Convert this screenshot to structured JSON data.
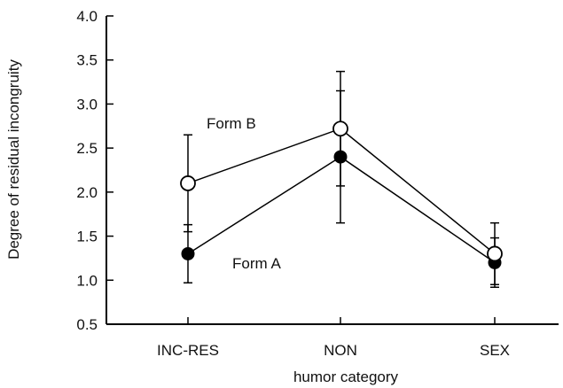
{
  "chart_data": {
    "type": "line",
    "title": "",
    "xlabel": "humor category",
    "ylabel": "Degree of residual incongruity",
    "categories": [
      "INC-RES",
      "NON",
      "SEX"
    ],
    "ylim": [
      0.5,
      4.0
    ],
    "yticks": [
      0.5,
      1.0,
      1.5,
      2.0,
      2.5,
      3.0,
      3.5,
      4.0
    ],
    "ytick_labels": [
      "0.5",
      "1.0",
      "1.5",
      "2.0",
      "2.5",
      "3.0",
      "3.5",
      "4.0"
    ],
    "grid": false,
    "legend": "none (series labeled inline)",
    "series": [
      {
        "name": "Form B",
        "marker": "open-circle",
        "color": "#000000",
        "values": [
          2.1,
          2.72,
          1.3
        ],
        "error": [
          0.55,
          0.65,
          0.35
        ]
      },
      {
        "name": "Form A",
        "marker": "filled-circle",
        "color": "#000000",
        "values": [
          1.3,
          2.4,
          1.2
        ],
        "error": [
          0.33,
          0.75,
          0.28
        ]
      }
    ]
  }
}
